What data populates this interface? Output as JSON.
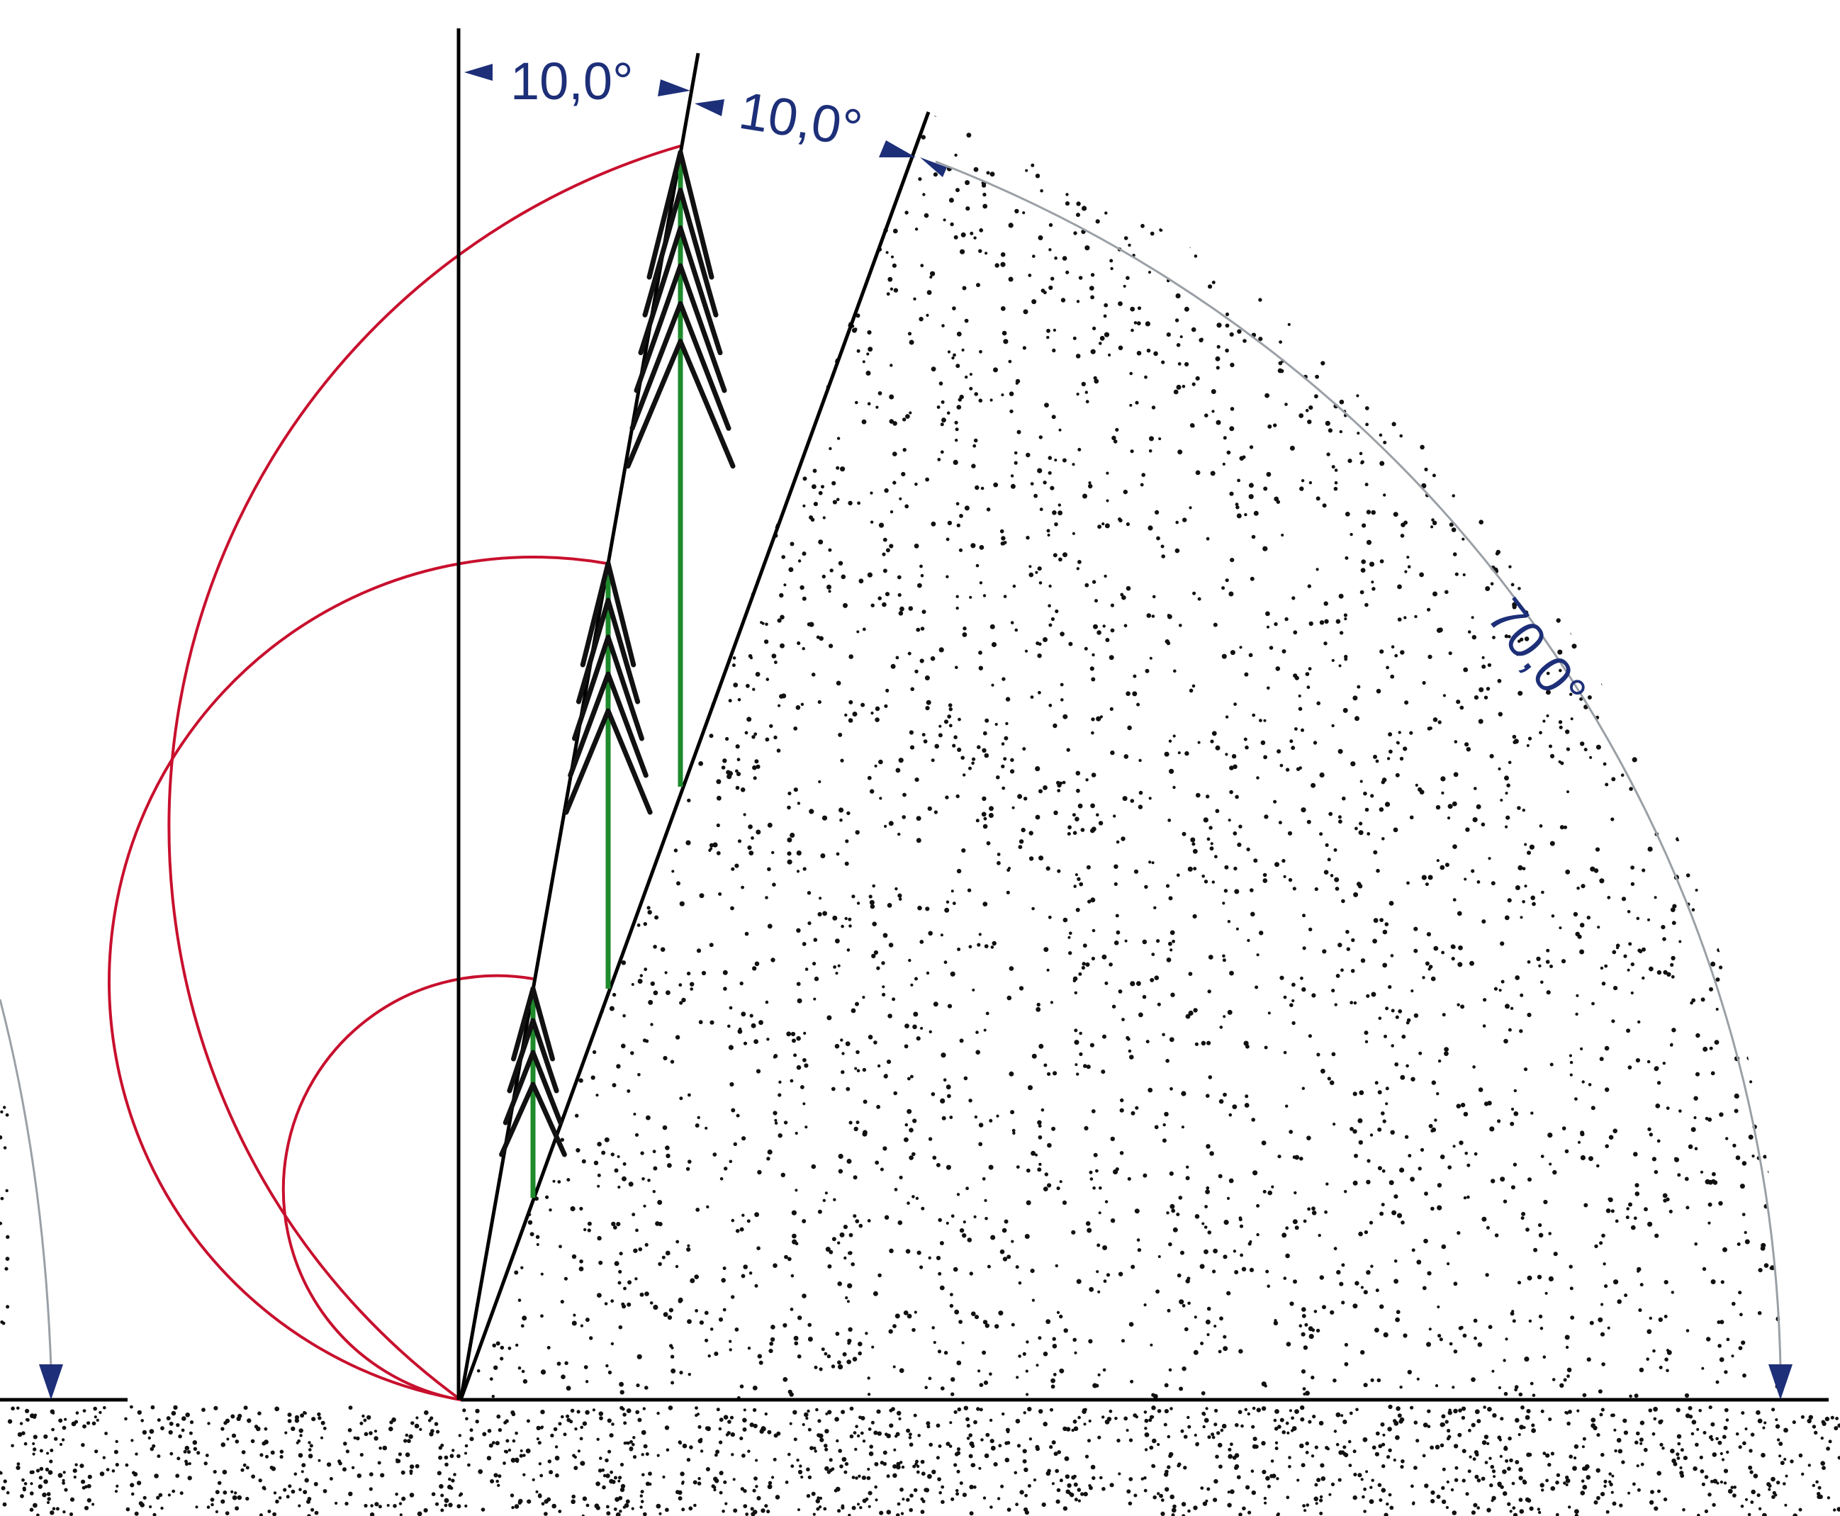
{
  "labels": {
    "angle_top_left": "10,0°",
    "angle_top_right": "10,0°",
    "angle_slope": "70,0°"
  },
  "colors": {
    "line": "#000000",
    "arc_red": "#c8102e",
    "stem_green": "#1e8a2c",
    "arrow_blue": "#1d2f78",
    "arc_gray": "#9aa0a6",
    "dots": "#111111"
  },
  "diagram": {
    "reference_vertical_deg": 0,
    "tree_lean_deg": 10,
    "slope_line_deg": 20,
    "slope_arc_deg": 70,
    "tree_count": 3
  }
}
